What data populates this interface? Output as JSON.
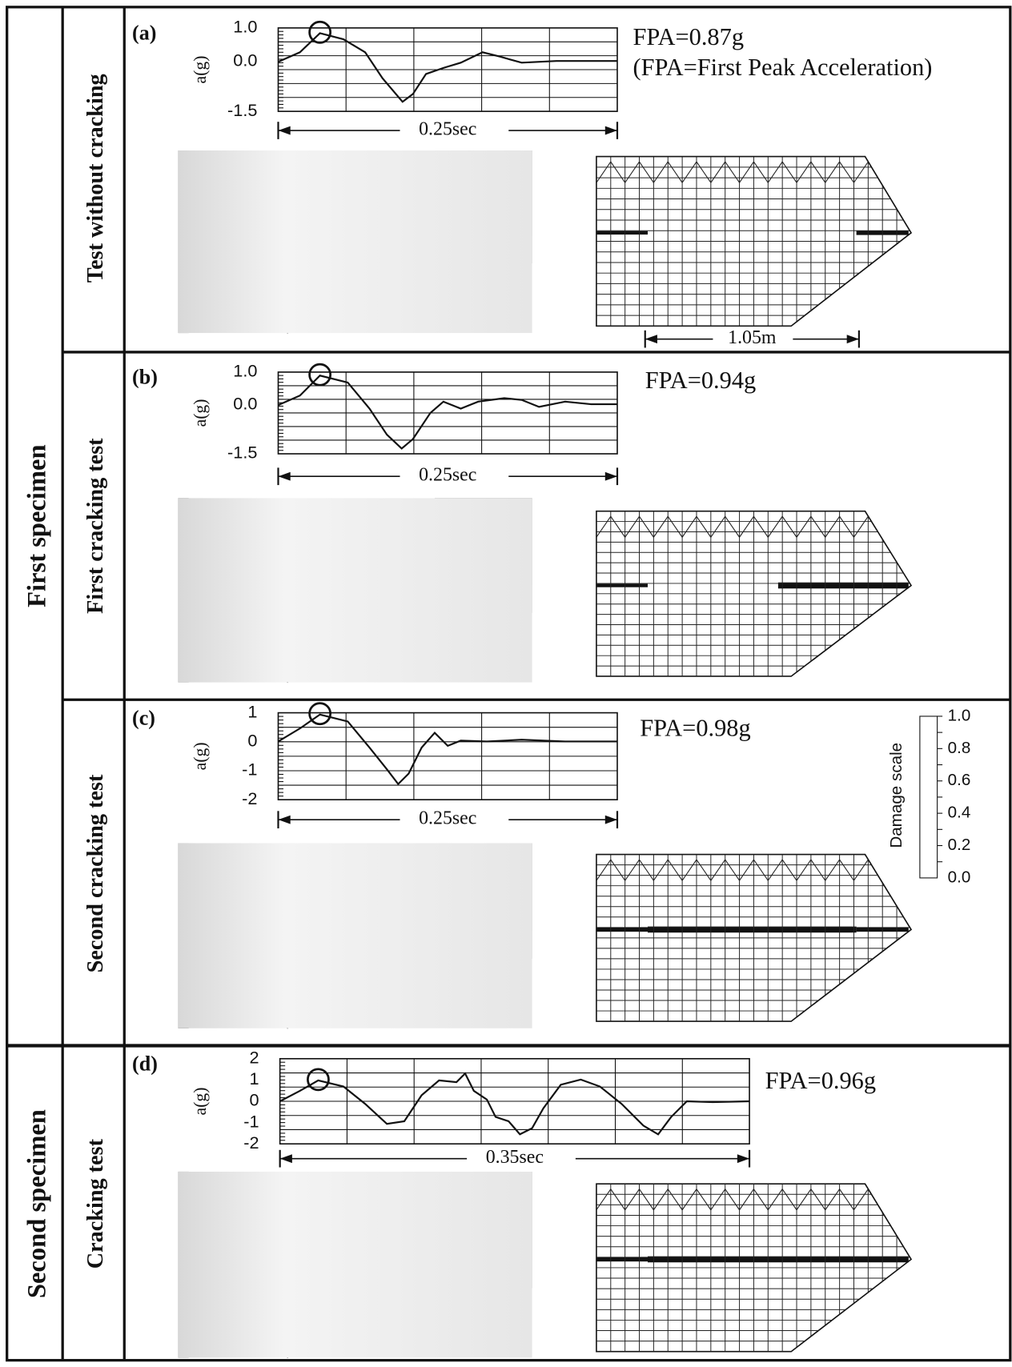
{
  "groups": [
    {
      "label": "First specimen"
    },
    {
      "label": "Second specimen"
    }
  ],
  "rows": [
    {
      "label": "Test without cracking",
      "tag": "(a)",
      "y_axis_label": "a(g)",
      "yticks": [
        "1.0",
        "0.0",
        "-1.5"
      ],
      "duration": "0.25sec",
      "fpa": "FPA=0.87g",
      "note": "(FPA=First Peak Acceleration)",
      "mesh_dimension": "1.05m"
    },
    {
      "label": "First cracking test",
      "tag": "(b)",
      "y_axis_label": "a(g)",
      "yticks": [
        "1.0",
        "0.0",
        "-1.5"
      ],
      "duration": "0.25sec",
      "fpa": "FPA=0.94g"
    },
    {
      "label": "Second cracking test",
      "tag": "(c)",
      "y_axis_label": "a(g)",
      "yticks": [
        "1",
        "0",
        "-1",
        "-2"
      ],
      "duration": "0.25sec",
      "fpa": "FPA=0.98g"
    },
    {
      "label": "Cracking test",
      "tag": "(d)",
      "y_axis_label": "a(g)",
      "yticks": [
        "2",
        "1",
        "0",
        "-1",
        "-2"
      ],
      "duration": "0.35sec",
      "fpa": "FPA=0.96g"
    }
  ],
  "damage_scale": {
    "label": "Damage scale",
    "ticks": [
      "1.0",
      "0.8",
      "0.6",
      "0.4",
      "0.2",
      "0.0"
    ]
  }
}
